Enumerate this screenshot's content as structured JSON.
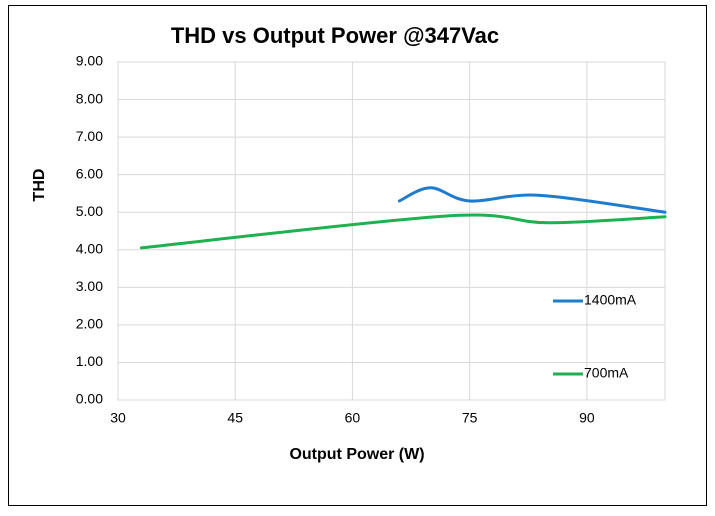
{
  "chart_data": {
    "type": "line",
    "title": "THD vs Output Power @347Vac",
    "xlabel": "Output Power (W)",
    "ylabel": "THD",
    "xlim": [
      30,
      100
    ],
    "xticks": [
      30,
      45,
      60,
      75,
      90
    ],
    "ylim": [
      0,
      9
    ],
    "yticks": [
      {
        "value": 0,
        "label": "0.00"
      },
      {
        "value": 1,
        "label": "1.00"
      },
      {
        "value": 2,
        "label": "2.00"
      },
      {
        "value": 3,
        "label": "3.00"
      },
      {
        "value": 4,
        "label": "4.00"
      },
      {
        "value": 5,
        "label": "5.00"
      },
      {
        "value": 6,
        "label": "6.00"
      },
      {
        "value": 7,
        "label": "7.00"
      },
      {
        "value": 8,
        "label": "8.00"
      },
      {
        "value": 9,
        "label": "9.00"
      }
    ],
    "grid": true,
    "smooth": true,
    "legend": "right",
    "series": [
      {
        "name": "1400mA",
        "color": "#1f7ccc",
        "x": [
          66,
          70,
          75,
          84,
          100
        ],
        "values": [
          5.3,
          5.65,
          5.3,
          5.45,
          5.0
        ]
      },
      {
        "name": "700mA",
        "color": "#1fb050",
        "x": [
          33,
          72,
          85,
          100
        ],
        "values": [
          4.05,
          4.9,
          4.72,
          4.88
        ]
      }
    ]
  }
}
